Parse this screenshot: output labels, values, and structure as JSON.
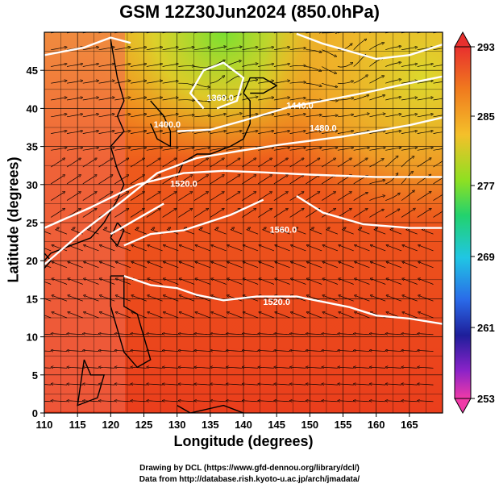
{
  "title": "GSM 12Z30Jun2024 (850.0hPa)",
  "xlabel": "Longitude (degrees)",
  "ylabel": "Latitude  (degrees)",
  "credits": [
    "Drawing by DCL (https://www.gfd-dennou.org/library/dcl/)",
    "Data from http://database.rish.kyoto-u.ac.jp/arch/jmadata/"
  ],
  "map": {
    "lon_range": [
      110,
      170
    ],
    "lat_range": [
      0,
      50
    ],
    "x_ticks": [
      "110",
      "115",
      "120",
      "125",
      "130",
      "135",
      "140",
      "145",
      "150",
      "155",
      "160",
      "165"
    ],
    "y_ticks": [
      "0",
      "5",
      "10",
      "15",
      "20",
      "25",
      "30",
      "35",
      "40",
      "45"
    ],
    "contour_labels": [
      "1360.0",
      "1400.0",
      "1440.0",
      "1480.0",
      "1520.0",
      "1560.0",
      "1520.0"
    ],
    "colorbar": {
      "labels": [
        "293",
        "285",
        "277",
        "269",
        "261",
        "253"
      ],
      "colors": [
        "#e8302e",
        "#f07a1e",
        "#f4c02a",
        "#8ee022",
        "#22d26e",
        "#20c6e4",
        "#2a6ae8",
        "#1e1e9a",
        "#8a22c8",
        "#f03aa8"
      ]
    },
    "colors": {
      "ocean_warm": "#ee4a1e",
      "land": "#f06a50",
      "contour": "#ffffff",
      "stream": "#000000"
    }
  }
}
